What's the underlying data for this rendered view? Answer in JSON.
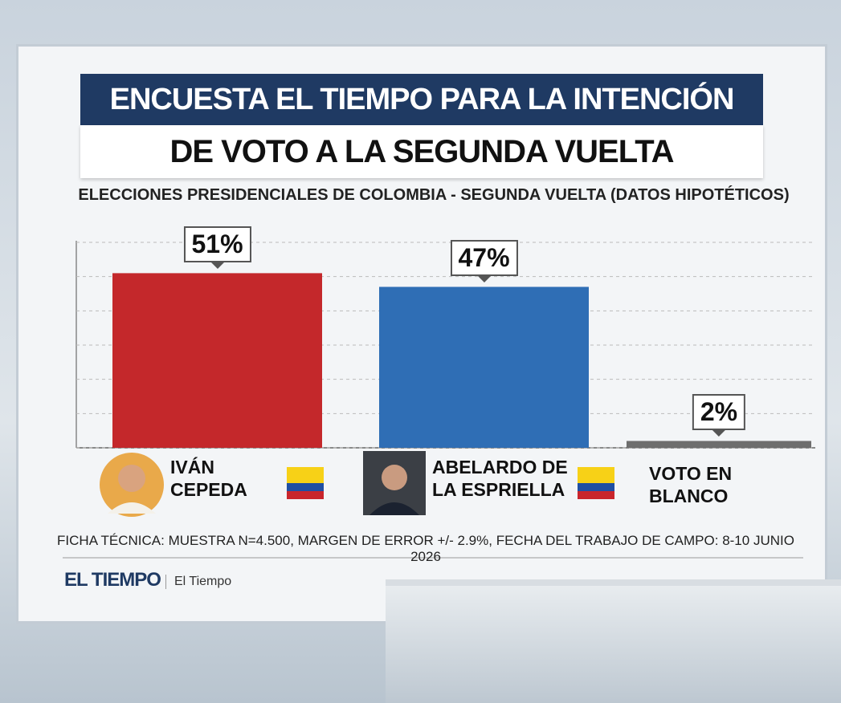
{
  "chart_data": {
    "type": "bar",
    "title": [
      "ENCUESTA EL TIEMPO PARA LA INTENCIÓN",
      "DE VOTO A LA SEGUNDA VUELTA"
    ],
    "subtitle": "ELECCIONES PRESIDENCIALES DE COLOMBIA - SEGUNDA VUELTA (DATOS HIPOTÉTICOS)",
    "categories": [
      "IVÁN CEPEDA",
      "ABELARDO DE LA ESPRIELLA",
      "VOTO EN BLANCO"
    ],
    "values": [
      51,
      47,
      2
    ],
    "value_labels": [
      "51%",
      "47%",
      "2%"
    ],
    "colors": [
      "#c4282b",
      "#2f6eb5",
      "#6e6e6e"
    ],
    "ylim": [
      0,
      60
    ],
    "yticks": [
      0,
      10,
      20,
      30,
      40,
      50,
      60
    ],
    "grid": true,
    "note": "FICHA TÉCNICA: MUESTRA N=4.500, MARGEN DE ERROR +/- 2.9%, FECHA DEL TRABAJO DE CAMPO: 8-10 JUNIO 2026",
    "source_logo": "EL TIEMPO",
    "source": "El Tiempo"
  }
}
